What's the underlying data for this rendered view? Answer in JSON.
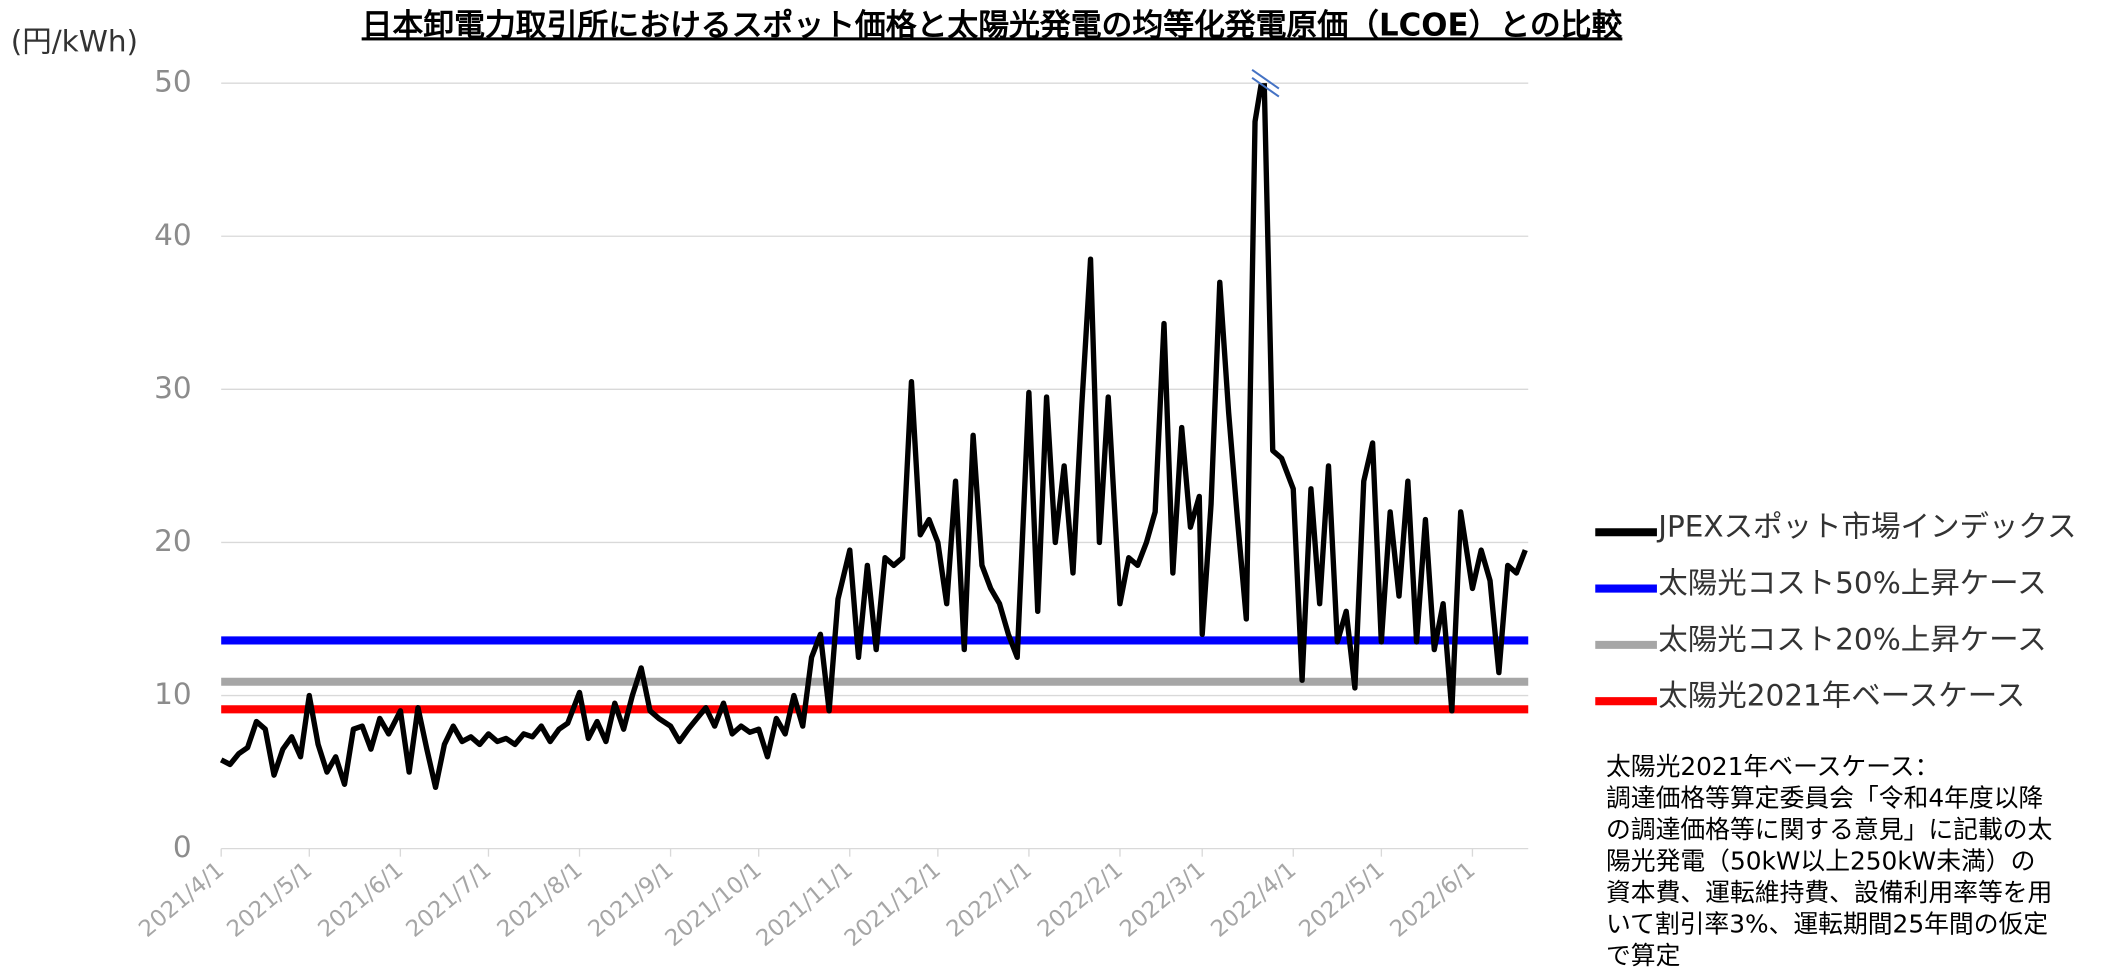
{
  "chart_data": {
    "type": "line",
    "title": "日本卸電力取引所におけるスポット価格と太陽光発電の均等化発電原価（LCOE）との比較",
    "y_label": "(円/kWh)",
    "ylim": [
      0,
      50
    ],
    "yticks": [
      0,
      10,
      20,
      30,
      40,
      50
    ],
    "grid": true,
    "xlim": [
      "2021/4/1",
      "2022/6/20"
    ],
    "xticks": [
      "2021/4/1",
      "2021/5/1",
      "2021/6/1",
      "2021/7/1",
      "2021/8/1",
      "2021/9/1",
      "2021/10/1",
      "2021/11/1",
      "2021/12/1",
      "2022/1/1",
      "2022/2/1",
      "2022/3/1",
      "2022/4/1",
      "2022/5/1",
      "2022/6/1"
    ],
    "x": [
      "2021/4/1",
      "2021/4/4",
      "2021/4/7",
      "2021/4/10",
      "2021/4/13",
      "2021/4/16",
      "2021/4/19",
      "2021/4/22",
      "2021/4/25",
      "2021/4/28",
      "2021/5/1",
      "2021/5/4",
      "2021/5/7",
      "2021/5/10",
      "2021/5/13",
      "2021/5/16",
      "2021/5/19",
      "2021/5/22",
      "2021/5/25",
      "2021/5/28",
      "2021/6/1",
      "2021/6/4",
      "2021/6/7",
      "2021/6/10",
      "2021/6/13",
      "2021/6/16",
      "2021/6/19",
      "2021/6/22",
      "2021/6/25",
      "2021/6/28",
      "2021/7/1",
      "2021/7/4",
      "2021/7/7",
      "2021/7/10",
      "2021/7/13",
      "2021/7/16",
      "2021/7/19",
      "2021/7/22",
      "2021/7/25",
      "2021/7/28",
      "2021/8/1",
      "2021/8/4",
      "2021/8/7",
      "2021/8/10",
      "2021/8/13",
      "2021/8/16",
      "2021/8/19",
      "2021/8/22",
      "2021/8/25",
      "2021/8/28",
      "2021/9/1",
      "2021/9/4",
      "2021/9/7",
      "2021/9/10",
      "2021/9/13",
      "2021/9/16",
      "2021/9/19",
      "2021/9/22",
      "2021/9/25",
      "2021/9/28",
      "2021/10/1",
      "2021/10/4",
      "2021/10/7",
      "2021/10/10",
      "2021/10/13",
      "2021/10/16",
      "2021/10/19",
      "2021/10/22",
      "2021/10/25",
      "2021/10/28",
      "2021/11/1",
      "2021/11/4",
      "2021/11/7",
      "2021/11/10",
      "2021/11/13",
      "2021/11/16",
      "2021/11/19",
      "2021/11/22",
      "2021/11/25",
      "2021/11/28",
      "2021/12/1",
      "2021/12/4",
      "2021/12/7",
      "2021/12/10",
      "2021/12/13",
      "2021/12/16",
      "2021/12/19",
      "2021/12/22",
      "2021/12/25",
      "2021/12/28",
      "2022/1/1",
      "2022/1/4",
      "2022/1/7",
      "2022/1/10",
      "2022/1/13",
      "2022/1/16",
      "2022/1/19",
      "2022/1/22",
      "2022/1/25",
      "2022/1/28",
      "2022/2/1",
      "2022/2/4",
      "2022/2/7",
      "2022/2/10",
      "2022/2/13",
      "2022/2/16",
      "2022/2/19",
      "2022/2/22",
      "2022/2/25",
      "2022/2/28",
      "2022/3/1",
      "2022/3/4",
      "2022/3/7",
      "2022/3/10",
      "2022/3/13",
      "2022/3/16",
      "2022/3/19",
      "2022/3/22",
      "2022/3/25",
      "2022/3/28",
      "2022/4/1",
      "2022/4/4",
      "2022/4/7",
      "2022/4/10",
      "2022/4/13",
      "2022/4/16",
      "2022/4/19",
      "2022/4/22",
      "2022/4/25",
      "2022/4/28",
      "2022/5/1",
      "2022/5/4",
      "2022/5/7",
      "2022/5/10",
      "2022/5/13",
      "2022/5/16",
      "2022/5/19",
      "2022/5/22",
      "2022/5/25",
      "2022/5/28",
      "2022/6/1",
      "2022/6/4",
      "2022/6/7",
      "2022/6/10",
      "2022/6/13",
      "2022/6/16",
      "2022/6/19"
    ],
    "series": [
      {
        "name": "JPEXスポット市場インデックス",
        "color": "#000000",
        "values": [
          5.8,
          5.5,
          6.2,
          6.6,
          8.3,
          7.8,
          4.8,
          6.5,
          7.3,
          6.0,
          10.0,
          6.8,
          5.0,
          6.0,
          4.2,
          7.8,
          8.0,
          6.5,
          8.5,
          7.5,
          9.0,
          5.0,
          9.2,
          6.5,
          4.0,
          6.8,
          8.0,
          7.0,
          7.3,
          6.8,
          7.5,
          7.0,
          7.2,
          6.8,
          7.5,
          7.3,
          8.0,
          7.0,
          7.8,
          8.2,
          10.2,
          7.2,
          8.3,
          7.0,
          9.5,
          7.8,
          10.0,
          11.8,
          9.0,
          8.5,
          8.0,
          7.0,
          7.8,
          8.5,
          9.2,
          8.0,
          9.5,
          7.5,
          8.0,
          7.6,
          7.8,
          6.0,
          8.5,
          7.5,
          10.0,
          8.0,
          12.5,
          14.0,
          9.0,
          16.3,
          19.5,
          12.5,
          18.5,
          13.0,
          19.0,
          18.5,
          19.0,
          30.5,
          20.5,
          21.5,
          20.0,
          16.0,
          24.0,
          13.0,
          27.0,
          18.5,
          17.0,
          16.0,
          14.0,
          12.5,
          29.8,
          15.5,
          29.5,
          20.0,
          25.0,
          18.0,
          29.0,
          38.5,
          20.0,
          29.5,
          16.0,
          19.0,
          18.5,
          20.0,
          22.0,
          34.3,
          18.0,
          27.5,
          21.0,
          23.0,
          14.0,
          22.5,
          37.0,
          28.5,
          21.5,
          15.0,
          47.5,
          51.0,
          26.0,
          25.5,
          23.5,
          11.0,
          23.5,
          16.0,
          25.0,
          13.5,
          15.5,
          10.5,
          24.0,
          26.5,
          13.5,
          22.0,
          16.5,
          24.0,
          13.5,
          21.5,
          13.0,
          16.0,
          9.0,
          22.0,
          17.0,
          19.5,
          17.5,
          11.5,
          18.5,
          18.0,
          19.5
        ]
      },
      {
        "name": "太陽光コスト50%上昇ケース",
        "color": "#0000ff",
        "value": 13.6
      },
      {
        "name": "太陽光コスト20%上昇ケース",
        "color": "#a6a6a6",
        "value": 10.9
      },
      {
        "name": "太陽光2021年ベースケース",
        "color": "#ff0000",
        "value": 9.1
      }
    ],
    "note": [
      "太陽光2021年ベースケース：",
      "調達価格等算定委員会「令和4年度以降",
      "の調達価格等に関する意見」に記載の太",
      "陽光発電（50kW以上250kW未満）の",
      "資本費、運転維持費、設備利用率等を用",
      "いて割引率3%、運転期間25年間の仮定",
      "で算定"
    ]
  }
}
